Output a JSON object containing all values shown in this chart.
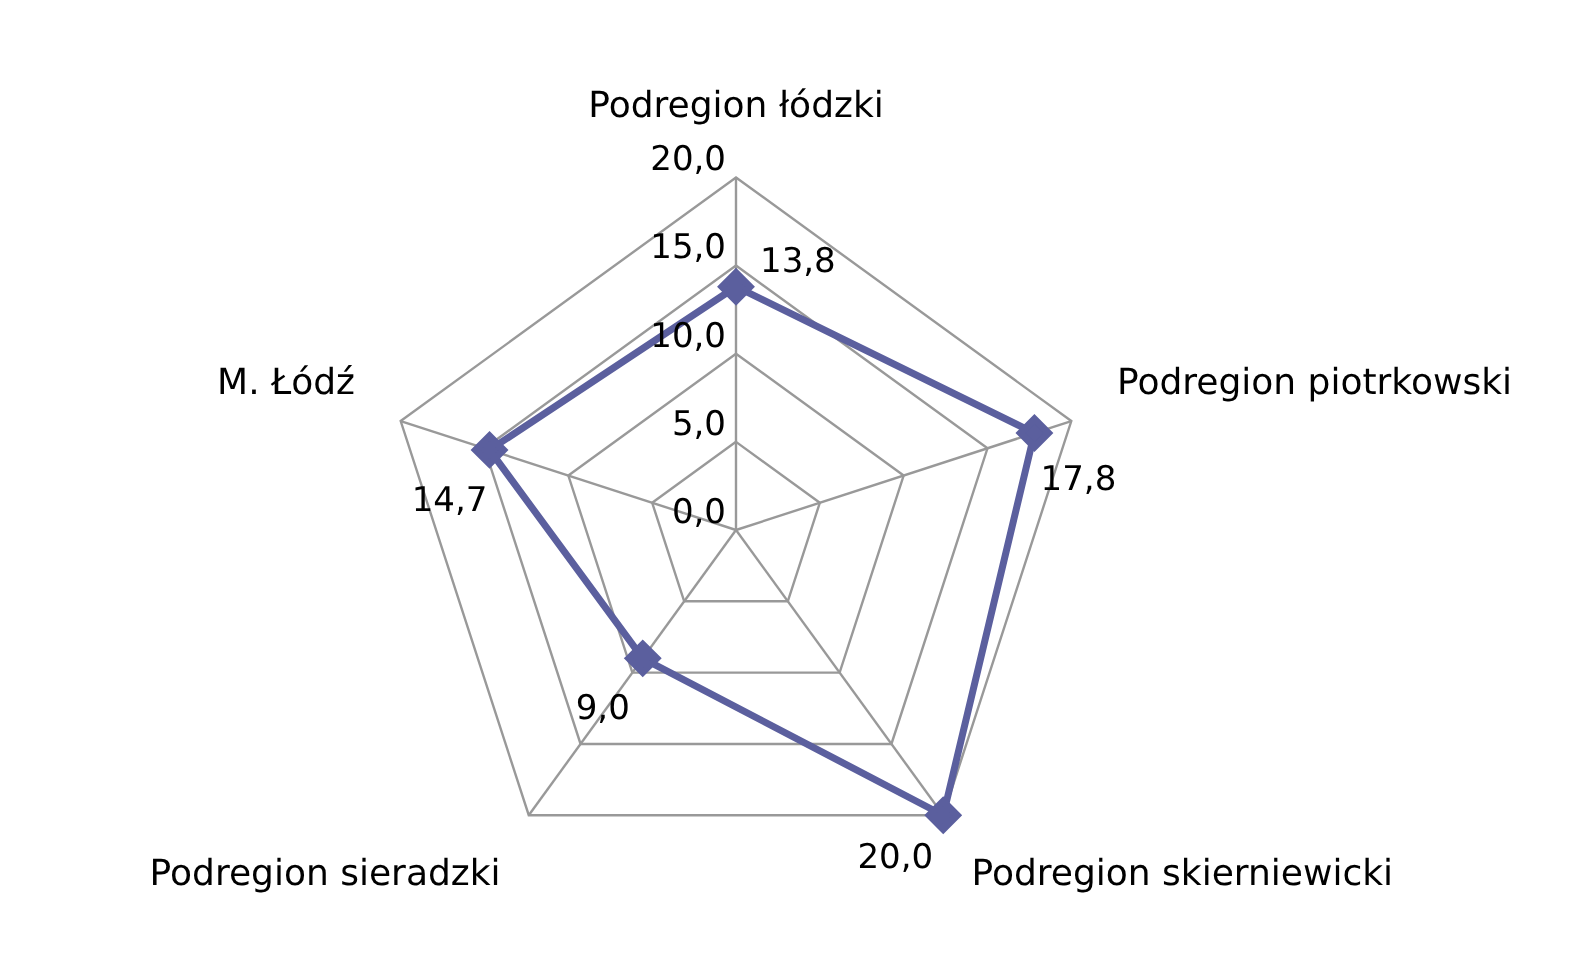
{
  "chart_data": {
    "type": "radar",
    "categories": [
      "Podregion łódzki",
      "Podregion piotrkowski",
      "Podregion skierniewicki",
      "Podregion sieradzki",
      "M. Łódź"
    ],
    "series": [
      {
        "color": "#5b5f9e",
        "values": [
          13.8,
          17.8,
          20.0,
          9.0,
          14.7
        ],
        "value_labels": [
          "13,8",
          "17,8",
          "20,0",
          "9,0",
          "14,7"
        ]
      }
    ],
    "ylim": [
      0,
      20
    ],
    "yticks": [
      {
        "value": 0,
        "label": "0,0"
      },
      {
        "value": 5,
        "label": "5,0"
      },
      {
        "value": 10,
        "label": "10,0"
      },
      {
        "value": 15,
        "label": "15,0"
      },
      {
        "value": 20,
        "label": "20,0"
      }
    ],
    "grid": true,
    "marker": "diamond",
    "line_style": "solid",
    "legend": false
  }
}
